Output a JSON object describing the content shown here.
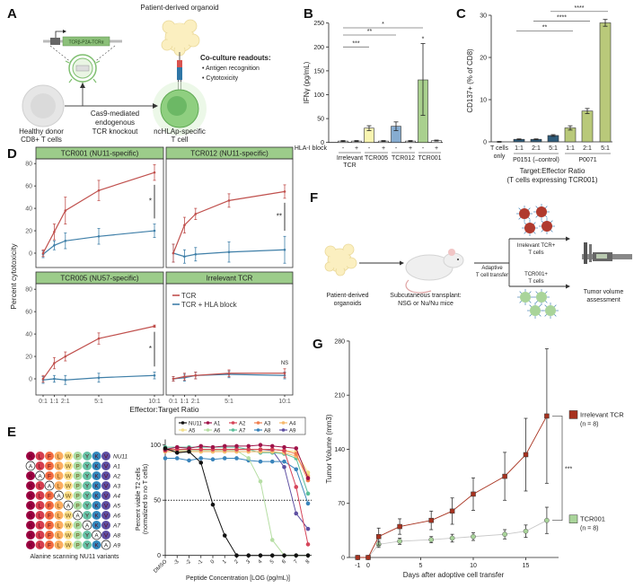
{
  "panel_labels": {
    "A": "A",
    "B": "B",
    "C": "C",
    "D": "D",
    "E": "E",
    "F": "F",
    "G": "G"
  },
  "panel_a": {
    "organoid_label": "Patient-derived organoid",
    "construct_label": "TCRβ-P2A-TCRα",
    "readouts_title": "Co-culture readouts:",
    "readouts": [
      "• Antigen recognition",
      "• Cytotoxicity"
    ],
    "knockout_label": [
      "Cas9-mediated",
      "endogenous",
      "TCR knockout"
    ],
    "donor_label": [
      "Healthy donor",
      "CD8+ T cells"
    ],
    "tcell_label": [
      "ncHLAp-specific",
      "T cell"
    ],
    "colors": {
      "tcell": "#8fcf80",
      "donor": "#d9d9d9",
      "organoid": "#fbefc0",
      "construct": "#8cc07a"
    }
  },
  "panel_f": {
    "organoids_label": [
      "Patient-derived",
      "organoids"
    ],
    "transplant_label": [
      "Subcutaneous transplant:",
      "NSG or Nu/Nu mice"
    ],
    "transfer_label": [
      "Adaptive",
      "T cell transfer"
    ],
    "irrelevant_label": [
      "Irrelevant TCR+",
      "T cells"
    ],
    "tcr001_label": [
      "TCR001+",
      "T cells"
    ],
    "assessment_label": [
      "Tumor volume",
      "assessment"
    ],
    "colors": {
      "irrelevant_cells": "#b03a2e",
      "tcr001_cells": "#a9d49a"
    }
  },
  "chart_data": [
    {
      "panel": "B",
      "type": "bar",
      "ylabel": "IFNγ (pg/mL)",
      "ylim": [
        0,
        250
      ],
      "yticks": [
        0,
        50,
        100,
        150,
        200,
        250
      ],
      "row_label": "HLA-I block",
      "groups": [
        {
          "label": [
            "Irrelevant",
            "TCR"
          ],
          "color": "#f2f2f2"
        },
        {
          "label": [
            "TCR005"
          ],
          "color": "#f8f4b0"
        },
        {
          "label": [
            "TCR012"
          ],
          "color": "#86acd0"
        },
        {
          "label": [
            "TCR001"
          ],
          "color": "#a9d08e"
        }
      ],
      "bars": [
        {
          "block": "-",
          "value": 3,
          "err": [
            2,
            4
          ]
        },
        {
          "block": "+",
          "value": 3,
          "err": [
            2,
            4
          ]
        },
        {
          "block": "-",
          "value": 30,
          "err": [
            25,
            35
          ]
        },
        {
          "block": "+",
          "value": 3,
          "err": [
            2,
            4
          ]
        },
        {
          "block": "-",
          "value": 34,
          "err": [
            25,
            43
          ]
        },
        {
          "block": "+",
          "value": 3,
          "err": [
            2,
            4
          ]
        },
        {
          "block": "-",
          "value": 131,
          "err": [
            57,
            207
          ]
        },
        {
          "block": "+",
          "value": 4,
          "err": [
            3,
            5
          ]
        }
      ],
      "significance": [
        {
          "from": 0,
          "to": 2,
          "y": 200,
          "label": "***"
        },
        {
          "from": 0,
          "to": 4,
          "y": 225,
          "label": "**"
        },
        {
          "from": 0,
          "to": 6,
          "y": 240,
          "label": "*"
        }
      ],
      "bar_annotations": [
        {
          "bar": 6,
          "label": "*"
        }
      ]
    },
    {
      "panel": "C",
      "type": "bar",
      "ylabel": "CD137+ (% of CD8)",
      "xlabel": [
        "Target:Effector Ratio",
        "(T cells expressing TCR001)"
      ],
      "ylim": [
        0,
        30
      ],
      "yticks": [
        0,
        10,
        20,
        30
      ],
      "categories": [
        {
          "label": [
            "T cells",
            "only"
          ],
          "value": 0,
          "err": 0.1,
          "color": "#ffffff"
        },
        {
          "label": [
            "1:1"
          ],
          "value": 0.6,
          "err": 0.1,
          "color": "#2e5b7a"
        },
        {
          "label": [
            "2:1"
          ],
          "value": 0.6,
          "err": 0.1,
          "color": "#2e5b7a"
        },
        {
          "label": [
            "5:1"
          ],
          "value": 1.5,
          "err": 0.2,
          "color": "#2e5b7a"
        },
        {
          "label": [
            "1:1"
          ],
          "value": 3.3,
          "err": 0.5,
          "color": "#b9c97a"
        },
        {
          "label": [
            "2:1"
          ],
          "value": 7.3,
          "err": 0.6,
          "color": "#b9c97a"
        },
        {
          "label": [
            "5:1"
          ],
          "value": 28.2,
          "err": 0.8,
          "color": "#b9c97a"
        }
      ],
      "target_groups": [
        {
          "label": "P0151 (–control)",
          "from": 1,
          "to": 3
        },
        {
          "label": "P0071",
          "from": 4,
          "to": 6
        }
      ],
      "significance": [
        {
          "from": 1,
          "to": 4,
          "y": 26.3,
          "label": "**"
        },
        {
          "from": 2,
          "to": 5,
          "y": 28.6,
          "label": "****"
        },
        {
          "from": 3,
          "to": 6,
          "y": 30.9,
          "label": "****"
        }
      ]
    },
    {
      "panel": "D",
      "type": "line",
      "ylabel": "Percent cytotoxicity",
      "xlabel": "Effector:Target Ratio",
      "x": [
        0,
        1,
        2,
        5,
        10
      ],
      "xticks": [
        "0:1",
        "1:1",
        "2:1",
        "5:1",
        "10:1"
      ],
      "yticks": [
        0,
        20,
        40,
        60,
        80
      ],
      "ylim": [
        -12,
        85
      ],
      "legend": [
        "TCR",
        "TCR + HLA block"
      ],
      "colors": {
        "tcr": "#c0504d",
        "block": "#3f7fa8",
        "header": "#9ccc8a"
      },
      "facets": [
        {
          "title": "TCR001 (NU11-specific)",
          "tcr": [
            0,
            19,
            38,
            56,
            72
          ],
          "tcr_err": [
            3,
            7,
            12,
            9,
            7
          ],
          "block": [
            -1,
            7,
            11,
            15,
            20
          ],
          "block_err": [
            3,
            4,
            7,
            7,
            6
          ],
          "sig": "*"
        },
        {
          "title": "TCR012 (NU11-specific)",
          "tcr": [
            0,
            25,
            35,
            47,
            55
          ],
          "tcr_err": [
            8,
            7,
            5,
            6,
            6
          ],
          "block": [
            0,
            -3,
            -1,
            1,
            3
          ],
          "block_err": [
            8,
            6,
            6,
            9,
            12
          ],
          "sig": "**"
        },
        {
          "title": "TCR005 (NU57-specific)",
          "tcr": [
            0,
            14,
            20,
            36,
            47
          ],
          "tcr_err": [
            3,
            5,
            4,
            5,
            1
          ],
          "block": [
            -1,
            0,
            -1,
            1,
            3
          ],
          "block_err": [
            3,
            3,
            4,
            4,
            3
          ],
          "sig": "*"
        },
        {
          "title": "Irrelevant TCR",
          "tcr": [
            0,
            2,
            3,
            5,
            5
          ],
          "tcr_err": [
            2,
            3,
            3,
            3,
            4
          ],
          "block": [
            0,
            1,
            3,
            4,
            3
          ],
          "block_err": [
            2,
            3,
            3,
            3,
            3
          ],
          "sig": "NS"
        }
      ]
    },
    {
      "panel": "E",
      "type": "line",
      "ylabel": [
        "Percent viable T2 cells",
        "(normalized to no T cells)"
      ],
      "xlabel": "Peptide Concentration [LOG (pg/mL)]",
      "xticks": [
        "DMSO",
        "-3",
        "-2",
        "-1",
        "0",
        "1",
        "2",
        "3",
        "4",
        "5",
        "6",
        "7",
        "8"
      ],
      "yticks": [
        0,
        50,
        100
      ],
      "ylim": [
        0,
        110
      ],
      "reference_line": 50,
      "variants_caption": "Alanine scanning NU11 variants",
      "residue_colors": [
        "#9e0142",
        "#d53e4f",
        "#f46d43",
        "#fdae61",
        "#fee08b",
        "#abdda4",
        "#66c2a5",
        "#3288bd",
        "#5e4fa2"
      ],
      "peptides": [
        {
          "name": "NU11",
          "seq": [
            "K",
            "L",
            "F",
            "L",
            "W",
            "P",
            "Y",
            "K",
            "V"
          ]
        },
        {
          "name": "A1",
          "seq": [
            "A",
            "L",
            "F",
            "L",
            "W",
            "P",
            "Y",
            "K",
            "V"
          ]
        },
        {
          "name": "A2",
          "seq": [
            "K",
            "A",
            "F",
            "L",
            "W",
            "P",
            "Y",
            "K",
            "V"
          ]
        },
        {
          "name": "A3",
          "seq": [
            "K",
            "L",
            "A",
            "L",
            "W",
            "P",
            "Y",
            "K",
            "V"
          ]
        },
        {
          "name": "A4",
          "seq": [
            "K",
            "L",
            "F",
            "A",
            "W",
            "P",
            "Y",
            "K",
            "V"
          ]
        },
        {
          "name": "A5",
          "seq": [
            "K",
            "L",
            "F",
            "L",
            "A",
            "P",
            "Y",
            "K",
            "V"
          ]
        },
        {
          "name": "A6",
          "seq": [
            "K",
            "L",
            "F",
            "L",
            "W",
            "A",
            "Y",
            "K",
            "V"
          ]
        },
        {
          "name": "A7",
          "seq": [
            "K",
            "L",
            "F",
            "L",
            "W",
            "P",
            "A",
            "K",
            "V"
          ]
        },
        {
          "name": "A8",
          "seq": [
            "K",
            "L",
            "F",
            "L",
            "W",
            "P",
            "Y",
            "A",
            "V"
          ]
        },
        {
          "name": "A9",
          "seq": [
            "K",
            "L",
            "F",
            "L",
            "W",
            "P",
            "Y",
            "K",
            "A"
          ]
        }
      ],
      "series": [
        {
          "name": "NU11",
          "color": "#111111",
          "values": [
            97,
            93,
            94,
            84,
            46,
            18,
            0,
            0,
            0,
            0,
            0,
            0,
            0
          ]
        },
        {
          "name": "A1",
          "color": "#a0144a",
          "values": [
            96,
            98,
            97,
            99,
            98,
            99,
            99,
            99,
            100,
            99,
            98,
            97,
            70
          ]
        },
        {
          "name": "A2",
          "color": "#d6455a",
          "values": [
            95,
            96,
            96,
            96,
            96,
            96,
            96,
            96,
            96,
            96,
            95,
            62,
            10
          ]
        },
        {
          "name": "A3",
          "color": "#f07f4f",
          "values": [
            96,
            96,
            96,
            96,
            96,
            96,
            96,
            96,
            96,
            96,
            95,
            92,
            68
          ]
        },
        {
          "name": "A4",
          "color": "#f6b96b",
          "values": [
            94,
            94,
            94,
            94,
            94,
            94,
            94,
            94,
            94,
            94,
            93,
            90,
            72
          ]
        },
        {
          "name": "A5",
          "color": "#f3df8a",
          "values": [
            96,
            96,
            96,
            96,
            96,
            96,
            96,
            96,
            96,
            96,
            95,
            94,
            75
          ]
        },
        {
          "name": "A6",
          "color": "#b6dea4",
          "values": [
            95,
            95,
            95,
            95,
            95,
            95,
            95,
            88,
            67,
            14,
            0,
            0,
            0
          ]
        },
        {
          "name": "A7",
          "color": "#5cbf9b",
          "values": [
            98,
            98,
            98,
            98,
            98,
            98,
            98,
            96,
            93,
            93,
            92,
            88,
            56
          ]
        },
        {
          "name": "A8",
          "color": "#3a84bb",
          "values": [
            88,
            88,
            86,
            88,
            87,
            88,
            88,
            86,
            85,
            85,
            85,
            78,
            47
          ]
        },
        {
          "name": "A9",
          "color": "#5e4fa2",
          "values": [
            96,
            96,
            96,
            96,
            96,
            96,
            96,
            96,
            96,
            95,
            80,
            38,
            24
          ]
        }
      ]
    },
    {
      "panel": "G",
      "type": "line",
      "ylabel": "Tumor Volume (mm3)",
      "xlabel": "Days after adoptive cell transfer",
      "xticks": [
        -1,
        0,
        5,
        10,
        15
      ],
      "yticks": [
        0,
        70,
        140,
        210,
        280
      ],
      "ylim": [
        0,
        280
      ],
      "x": [
        -1,
        0,
        1,
        3,
        6,
        8,
        10,
        13,
        15,
        17
      ],
      "significance": "***",
      "series": [
        {
          "name": "Irrelevant TCR",
          "n": "(n = 8)",
          "color": "#a8321f",
          "marker": "square",
          "values": [
            0,
            0,
            27,
            40,
            48,
            60,
            82,
            105,
            133,
            183
          ],
          "err": [
            0,
            0,
            11,
            10,
            12,
            17,
            21,
            31,
            47,
            87
          ]
        },
        {
          "name": "TCR001",
          "n": "(n = 8)",
          "color": "#a9d49a",
          "marker": "circle",
          "values": [
            0,
            0,
            17,
            21,
            23,
            25,
            27,
            30,
            34,
            48
          ],
          "err": [
            0,
            0,
            4,
            4,
            4,
            5,
            5,
            6,
            8,
            17
          ]
        }
      ]
    }
  ]
}
